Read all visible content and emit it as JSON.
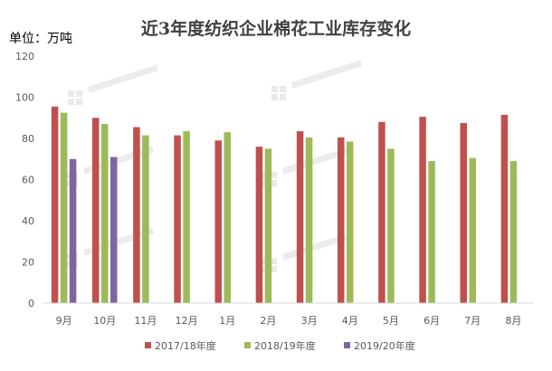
{
  "chart_data": {
    "type": "bar",
    "title": "近3年度纺织企业棉花工业库存变化",
    "unit_label": "单位：万吨",
    "xlabel": "",
    "ylabel": "",
    "ylim": [
      0,
      120
    ],
    "yticks": [
      0,
      20,
      40,
      60,
      80,
      100,
      120
    ],
    "grid": false,
    "legend_position": "bottom",
    "categories": [
      "9月",
      "10月",
      "11月",
      "12月",
      "1月",
      "2月",
      "3月",
      "4月",
      "5月",
      "6月",
      "7月",
      "8月"
    ],
    "series": [
      {
        "name": "2017/18年度",
        "color": "#c0504d",
        "values": [
          95.5,
          90,
          85.5,
          81.5,
          79,
          76,
          83.5,
          80.5,
          88,
          90.5,
          87.5,
          91.5
        ]
      },
      {
        "name": "2018/19年度",
        "color": "#9bbb59",
        "values": [
          92.5,
          87,
          81.5,
          83.5,
          83,
          75,
          80.5,
          78.5,
          75,
          69,
          70.5,
          69
        ]
      },
      {
        "name": "2019/20年度",
        "color": "#8064a2",
        "values": [
          70,
          71,
          null,
          null,
          null,
          null,
          null,
          null,
          null,
          null,
          null,
          null
        ]
      }
    ]
  }
}
